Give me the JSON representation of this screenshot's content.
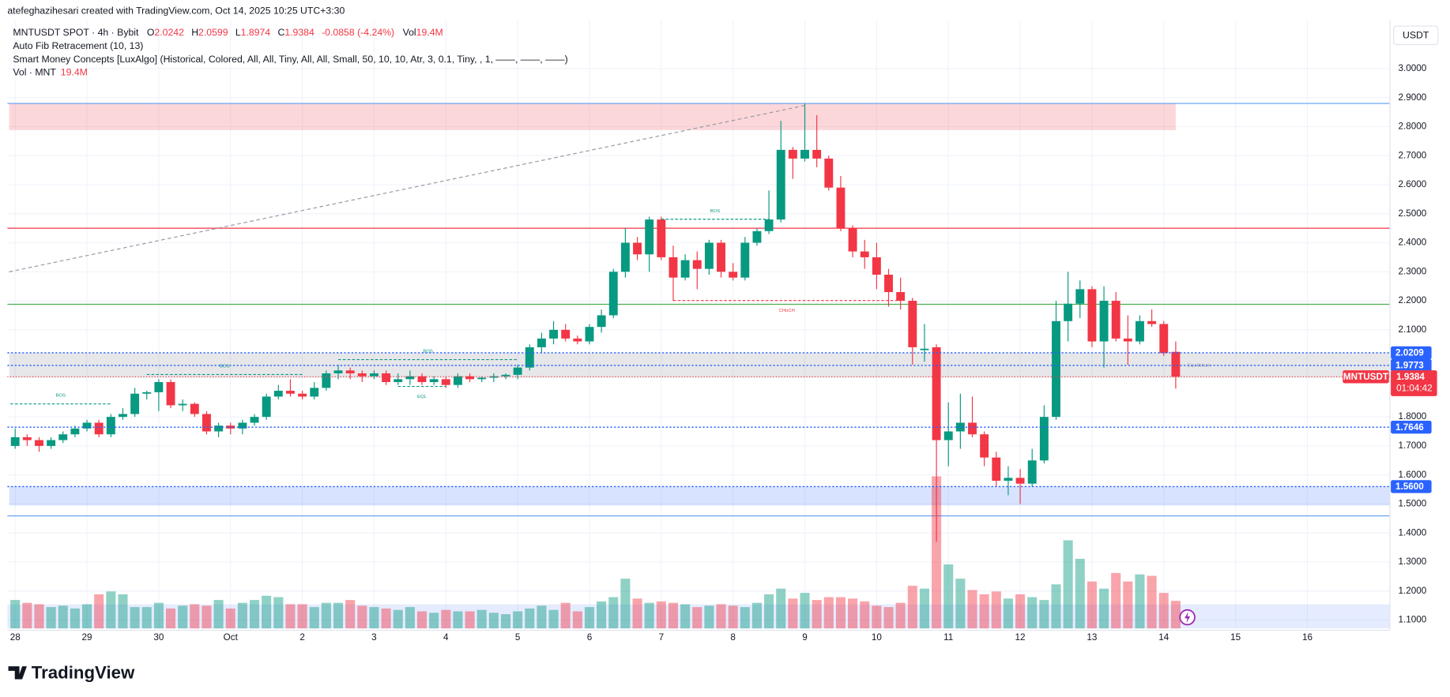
{
  "header": {
    "credit": "atefeghazihesari created with TradingView.com, Oct 14, 2025 10:25 UTC+3:30",
    "brand": "TradingView",
    "currency": "USDT"
  },
  "legend": {
    "symbol": "MNTUSDT SPOT · 4h · Bybit",
    "o": "O",
    "h": "H",
    "l": "L",
    "c": "C",
    "change": "-0.0858 (-4.24%)",
    "vol": "Vol",
    "vol_value": "19.4M",
    "indicators": [
      "Auto Fib Retracement (10, 13)",
      "Smart Money Concepts [LuxAlgo] (Historical, Colored, All, All, Tiny, All, All, Small, 50, 10, 10, Atr, 3, 0.1, Tiny, , 1, ——, ——, ——)"
    ],
    "vol_name": "Vol · MNT"
  },
  "chart_data": {
    "type": "candlestick",
    "up_color": "#089981",
    "down_color": "#f23645",
    "open": [
      1.7,
      1.73,
      1.72,
      1.7,
      1.72,
      1.74,
      1.76,
      1.78,
      1.74,
      1.8,
      1.81,
      1.88,
      1.885,
      1.92,
      1.84,
      1.845,
      1.81,
      1.75,
      1.77,
      1.76,
      1.78,
      1.8,
      1.87,
      1.89,
      1.88,
      1.87,
      1.9,
      1.95,
      1.96,
      1.95,
      1.94,
      1.95,
      1.92,
      1.93,
      1.94,
      1.92,
      1.93,
      1.91,
      1.94,
      1.93,
      1.935,
      1.94,
      1.945,
      1.97,
      2.04,
      2.07,
      2.1,
      2.07,
      2.06,
      2.11,
      2.15,
      2.3,
      2.4,
      2.36,
      2.48,
      2.35,
      2.28,
      2.34,
      2.31,
      2.4,
      2.3,
      2.28,
      2.4,
      2.44,
      2.48,
      2.72,
      2.69,
      2.72,
      2.69,
      2.59,
      2.45,
      2.37,
      2.35,
      2.29,
      2.23,
      2.2,
      2.03,
      2.04,
      1.72,
      1.75,
      1.78,
      1.74,
      1.66,
      1.58,
      1.59,
      1.57,
      1.65,
      1.8,
      2.13,
      2.19,
      2.24,
      2.06,
      2.2,
      2.07,
      2.06,
      2.13,
      2.12,
      2.0242
    ],
    "high": [
      1.76,
      1.74,
      1.73,
      1.73,
      1.75,
      1.77,
      1.79,
      1.79,
      1.81,
      1.83,
      1.9,
      1.89,
      1.93,
      1.93,
      1.86,
      1.85,
      1.82,
      1.78,
      1.78,
      1.79,
      1.81,
      1.88,
      1.91,
      1.93,
      1.89,
      1.92,
      1.96,
      1.98,
      1.97,
      1.96,
      1.96,
      1.96,
      1.95,
      1.96,
      1.95,
      1.94,
      1.94,
      1.95,
      1.95,
      1.94,
      1.95,
      1.95,
      1.98,
      2.05,
      2.09,
      2.13,
      2.12,
      2.08,
      2.12,
      2.17,
      2.31,
      2.45,
      2.42,
      2.49,
      2.49,
      2.39,
      2.36,
      2.37,
      2.41,
      2.41,
      2.33,
      2.42,
      2.45,
      2.58,
      2.82,
      2.73,
      2.88,
      2.84,
      2.7,
      2.63,
      2.46,
      2.41,
      2.4,
      2.31,
      2.28,
      2.21,
      2.12,
      2.05,
      1.85,
      1.88,
      1.87,
      1.75,
      1.68,
      1.63,
      1.62,
      1.69,
      1.84,
      2.2,
      2.3,
      2.27,
      2.25,
      2.25,
      2.23,
      2.15,
      2.15,
      2.17,
      2.13,
      2.0599
    ],
    "low": [
      1.69,
      1.7,
      1.68,
      1.69,
      1.71,
      1.73,
      1.75,
      1.73,
      1.73,
      1.79,
      1.8,
      1.86,
      1.82,
      1.83,
      1.82,
      1.8,
      1.74,
      1.73,
      1.74,
      1.74,
      1.77,
      1.79,
      1.86,
      1.87,
      1.86,
      1.86,
      1.89,
      1.93,
      1.93,
      1.92,
      1.93,
      1.91,
      1.91,
      1.91,
      1.91,
      1.91,
      1.9,
      1.9,
      1.92,
      1.92,
      1.92,
      1.93,
      1.93,
      1.96,
      2.02,
      2.05,
      2.06,
      2.05,
      2.05,
      2.09,
      2.14,
      2.28,
      2.34,
      2.3,
      2.34,
      2.2,
      2.27,
      2.24,
      2.29,
      2.28,
      2.27,
      2.27,
      2.39,
      2.43,
      2.47,
      2.62,
      2.68,
      2.66,
      2.58,
      2.44,
      2.35,
      2.31,
      2.24,
      2.18,
      2.17,
      1.98,
      1.99,
      1.37,
      1.63,
      1.69,
      1.73,
      1.63,
      1.56,
      1.53,
      1.5,
      1.56,
      1.64,
      1.79,
      2.06,
      2.14,
      2.04,
      1.97,
      2.06,
      1.98,
      2.05,
      2.11,
      2.01,
      1.8974
    ],
    "close": [
      1.73,
      1.72,
      1.7,
      1.72,
      1.74,
      1.76,
      1.78,
      1.74,
      1.8,
      1.81,
      1.88,
      1.885,
      1.92,
      1.84,
      1.845,
      1.81,
      1.75,
      1.77,
      1.76,
      1.78,
      1.8,
      1.87,
      1.89,
      1.88,
      1.87,
      1.9,
      1.95,
      1.96,
      1.95,
      1.94,
      1.95,
      1.92,
      1.93,
      1.94,
      1.92,
      1.93,
      1.91,
      1.94,
      1.93,
      1.935,
      1.94,
      1.945,
      1.97,
      2.04,
      2.07,
      2.1,
      2.07,
      2.06,
      2.11,
      2.15,
      2.3,
      2.4,
      2.36,
      2.48,
      2.35,
      2.28,
      2.34,
      2.31,
      2.4,
      2.3,
      2.28,
      2.4,
      2.44,
      2.48,
      2.72,
      2.69,
      2.72,
      2.69,
      2.59,
      2.45,
      2.37,
      2.35,
      2.29,
      2.23,
      2.2,
      2.04,
      2.035,
      1.72,
      1.75,
      1.78,
      1.74,
      1.66,
      1.58,
      1.59,
      1.57,
      1.65,
      1.8,
      2.13,
      2.19,
      2.24,
      2.06,
      2.2,
      2.07,
      2.06,
      2.13,
      2.12,
      2.02,
      1.9384
    ],
    "volume": [
      20,
      18,
      17,
      15,
      16,
      14,
      17,
      24,
      26,
      24,
      15,
      15,
      18,
      14,
      16,
      17,
      16,
      20,
      14,
      18,
      20,
      23,
      22,
      17,
      17,
      15,
      18,
      18,
      20,
      16,
      15,
      14,
      13,
      15,
      12,
      11,
      13,
      12,
      12,
      13,
      11,
      10,
      12,
      14,
      16,
      13,
      18,
      12,
      15,
      19,
      22,
      35,
      21,
      18,
      19,
      18,
      17,
      15,
      16,
      17,
      16,
      15,
      18,
      24,
      28,
      21,
      25,
      20,
      22,
      22,
      21,
      19,
      16,
      15,
      18,
      30,
      28,
      107,
      45,
      35,
      27,
      24,
      26,
      21,
      24,
      22,
      20,
      31,
      62,
      49,
      33,
      28,
      39,
      33,
      38,
      37,
      25,
      19.4
    ],
    "volume_lim": [
      0,
      130
    ],
    "ylim": [
      1.0713,
      3.1655
    ],
    "xlim": [
      -0.65,
      114.9
    ],
    "yticks": [
      {
        "value": 3.0,
        "label": "3.0000"
      },
      {
        "value": 2.9,
        "label": "2.9000"
      },
      {
        "value": 2.8,
        "label": "2.8000"
      },
      {
        "value": 2.7,
        "label": "2.7000"
      },
      {
        "value": 2.6,
        "label": "2.6000"
      },
      {
        "value": 2.5,
        "label": "2.5000"
      },
      {
        "value": 2.4,
        "label": "2.4000"
      },
      {
        "value": 2.3,
        "label": "2.3000"
      },
      {
        "value": 2.2,
        "label": "2.2000"
      },
      {
        "value": 2.1,
        "label": "2.1000"
      },
      {
        "value": 1.8,
        "label": "1.8000"
      },
      {
        "value": 1.7,
        "label": "1.7000"
      },
      {
        "value": 1.6,
        "label": "1.6000"
      },
      {
        "value": 1.5,
        "label": "1.5000"
      },
      {
        "value": 1.4,
        "label": "1.4000"
      },
      {
        "value": 1.3,
        "label": "1.3000"
      },
      {
        "value": 1.2,
        "label": "1.2000"
      },
      {
        "value": 1.1,
        "label": "1.1000"
      }
    ],
    "xticks": [
      {
        "value": 0,
        "label": "28"
      },
      {
        "value": 6,
        "label": "29"
      },
      {
        "value": 12,
        "label": "30"
      },
      {
        "value": 18,
        "label": "Oct"
      },
      {
        "value": 24,
        "label": "2"
      },
      {
        "value": 30,
        "label": "3"
      },
      {
        "value": 36,
        "label": "4"
      },
      {
        "value": 42,
        "label": "5"
      },
      {
        "value": 48,
        "label": "6"
      },
      {
        "value": 54,
        "label": "7"
      },
      {
        "value": 60,
        "label": "8"
      },
      {
        "value": 66,
        "label": "9"
      },
      {
        "value": 72,
        "label": "10"
      },
      {
        "value": 78,
        "label": "11"
      },
      {
        "value": 84,
        "label": "12"
      },
      {
        "value": 90,
        "label": "13"
      },
      {
        "value": 96,
        "label": "14"
      },
      {
        "value": 102,
        "label": "15"
      },
      {
        "value": 108,
        "label": "16"
      }
    ],
    "grid": true,
    "zones": [
      {
        "from": 2.88,
        "to": 2.788,
        "start": -0.5,
        "end": 97,
        "color": "rgba(242,54,69,0.2)"
      },
      {
        "from": 2.02,
        "to": 1.935,
        "start": -0.5,
        "end": 114.9,
        "color": "rgba(120,123,134,0.18)"
      },
      {
        "from": 1.56,
        "to": 1.495,
        "start": -0.5,
        "end": 114.9,
        "color": "rgba(41,98,255,0.18)"
      }
    ],
    "levels": [
      {
        "value": 2.88,
        "color": "#5b9cf6"
      },
      {
        "value": 2.45,
        "color": "#f23645"
      },
      {
        "value": 2.188,
        "color": "#4caf50"
      },
      {
        "value": 1.459,
        "color": "#5b9cf6"
      }
    ],
    "fib_line": {
      "from": [
        -0.5,
        2.2998
      ],
      "to": [
        66,
        2.873
      ]
    },
    "structures": [
      {
        "label": "BOS",
        "from": -0.4,
        "to": 8,
        "price": 1.8447,
        "color": "#089981"
      },
      {
        "label": "BOS",
        "from": 11,
        "to": 24,
        "price": 1.946,
        "color": "#089981"
      },
      {
        "label": "BOS",
        "from": 27,
        "to": 42,
        "price": 1.9975,
        "color": "#089981"
      },
      {
        "label": "EQL",
        "from": 32,
        "to": 36,
        "price": 1.905,
        "color": "#089981"
      },
      {
        "label": "BOS",
        "from": 54,
        "to": 63,
        "price": 2.481,
        "color": "#089981"
      },
      {
        "label": "CHoCH",
        "from": 55,
        "to": 74,
        "price": 2.2011,
        "color": "#f23645"
      }
    ],
    "equilibrium": {
      "label": "Equilibrium",
      "at": 98,
      "price": 1.9773
    },
    "price_tags": [
      {
        "value": 2.0209,
        "label": "2.0209",
        "color": "#2962ff"
      },
      {
        "value": 1.9773,
        "label": "1.9773",
        "color": "#2962ff"
      },
      {
        "value": 1.7646,
        "label": "1.7646",
        "color": "#2962ff"
      },
      {
        "value": 1.56,
        "label": "1.5600",
        "color": "#2962ff"
      }
    ],
    "last_price": {
      "name": "MNTUSDT",
      "label": "1.9384",
      "countdown": "01:04:42",
      "color": "#f23645"
    }
  }
}
